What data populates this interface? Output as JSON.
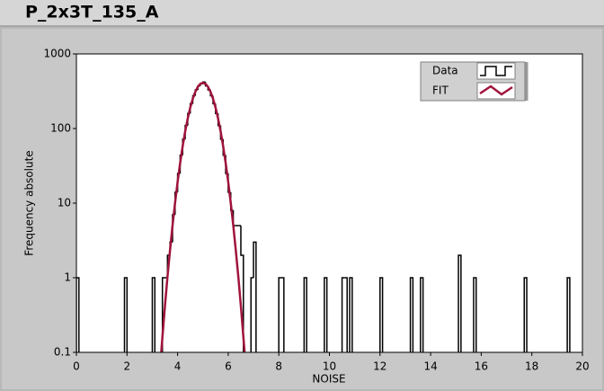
{
  "chart_data": {
    "type": "histogram",
    "title": "P_2x3T_135_A",
    "xlabel": "NOISE",
    "ylabel": "Frequency absolute",
    "xlim": [
      0,
      20
    ],
    "xticks": [
      0,
      2,
      4,
      6,
      8,
      10,
      12,
      14,
      16,
      18,
      20
    ],
    "ylim": [
      0.1,
      1000
    ],
    "yticks": [
      0.1,
      1,
      10,
      100,
      1000
    ],
    "log_y": true,
    "grid": false,
    "legend": "upper right",
    "series": [
      {
        "name": "Data",
        "type": "histogram",
        "color": "#000000",
        "bins": [
          0,
          0.1,
          0.2,
          0.3,
          0.4,
          0.5,
          0.6,
          0.7,
          0.8,
          0.9,
          1,
          1.1,
          1.2,
          1.3,
          1.4,
          1.5,
          1.6,
          1.7,
          1.8,
          1.9,
          2,
          2.1,
          2.2,
          2.3,
          2.4,
          2.5,
          2.6,
          2.7,
          2.8,
          2.9,
          3,
          3.1,
          3.2,
          3.3,
          3.4,
          3.5,
          3.6,
          3.7,
          3.8,
          3.9,
          4,
          4.1,
          4.2,
          4.3,
          4.4,
          4.5,
          4.6,
          4.7,
          4.8,
          4.9,
          5,
          5.1,
          5.2,
          5.3,
          5.4,
          5.5,
          5.6,
          5.7,
          5.8,
          5.9,
          6,
          6.1,
          6.2,
          6.3,
          6.4,
          6.5,
          6.6,
          6.7,
          6.8,
          6.9,
          7,
          7.1,
          7.2,
          7.3,
          7.4,
          7.5,
          7.6,
          7.7,
          7.8,
          7.9,
          8,
          8.1,
          8.2,
          8.3,
          8.4,
          8.5,
          8.6,
          8.7,
          8.8,
          8.9,
          9,
          9.1,
          9.2,
          9.3,
          9.4,
          9.5,
          9.6,
          9.7,
          9.8,
          9.9,
          10,
          10.1,
          10.2,
          10.3,
          10.4,
          10.5,
          10.6,
          10.7,
          10.8,
          10.9,
          11,
          11.1,
          11.2,
          11.3,
          11.4,
          11.5,
          11.6,
          11.7,
          11.8,
          11.9,
          12,
          12.1,
          12.2,
          12.3,
          12.4,
          12.5,
          12.6,
          12.7,
          12.8,
          12.9,
          13,
          13.1,
          13.2,
          13.3,
          13.4,
          13.5,
          13.6,
          13.7,
          13.8,
          13.9,
          14,
          14.1,
          14.2,
          14.3,
          14.4,
          14.5,
          14.6,
          14.7,
          14.8,
          14.9,
          15,
          15.1,
          15.2,
          15.3,
          15.4,
          15.5,
          15.6,
          15.7,
          15.8,
          15.9,
          16,
          16.1,
          16.2,
          16.3,
          16.4,
          16.5,
          16.6,
          16.7,
          16.8,
          16.9,
          17,
          17.1,
          17.2,
          17.3,
          17.4,
          17.5,
          17.6,
          17.7,
          17.8,
          17.9,
          18,
          18.1,
          18.2,
          18.3,
          18.4,
          18.5,
          18.6,
          18.7,
          18.8,
          18.9,
          19,
          19.1,
          19.2,
          19.3,
          19.4,
          19.5,
          19.6,
          19.7,
          19.8,
          19.9,
          20
        ],
        "counts": [
          1,
          0,
          0,
          0,
          0,
          0,
          0,
          0,
          0,
          0,
          0,
          0,
          0,
          0,
          0,
          0,
          0,
          0,
          0,
          1,
          0,
          0,
          0,
          0,
          0,
          0,
          0,
          0,
          0,
          0,
          1,
          0,
          0,
          0,
          1,
          1,
          2,
          3,
          7,
          14,
          25,
          44,
          72,
          110,
          159,
          215,
          275,
          330,
          373,
          397,
          420,
          373,
          330,
          275,
          215,
          159,
          110,
          72,
          44,
          25,
          14,
          8,
          5,
          5,
          5,
          2,
          0,
          0,
          0,
          1,
          3,
          0,
          0,
          0,
          0,
          0,
          0,
          0,
          0,
          0,
          1,
          1,
          0,
          0,
          0,
          0,
          0,
          0,
          0,
          0,
          1,
          0,
          0,
          0,
          0,
          0,
          0,
          0,
          1,
          0,
          0,
          0,
          0,
          0,
          0,
          1,
          1,
          0,
          1,
          0,
          0,
          0,
          0,
          0,
          0,
          0,
          0,
          0,
          0,
          0,
          1,
          0,
          0,
          0,
          0,
          0,
          0,
          0,
          0,
          0,
          0,
          0,
          1,
          0,
          0,
          0,
          1,
          0,
          0,
          0,
          0,
          0,
          0,
          0,
          0,
          0,
          0,
          0,
          0,
          0,
          0,
          2,
          0,
          0,
          0,
          0,
          0,
          1,
          0,
          0,
          0,
          0,
          0,
          0,
          0,
          0,
          0,
          0,
          0,
          0,
          0,
          0,
          0,
          0,
          0,
          0,
          0,
          1,
          0,
          0,
          0,
          0,
          0,
          0,
          0,
          0,
          0,
          0,
          0,
          0,
          0,
          0,
          0,
          0,
          1,
          0,
          0,
          0,
          0,
          0
        ]
      },
      {
        "name": "FIT",
        "type": "line",
        "color": "#a0143c",
        "x": [
          3.3,
          3.4,
          3.5,
          3.6,
          3.7,
          3.8,
          3.9,
          4,
          4.1,
          4.2,
          4.3,
          4.4,
          4.5,
          4.6,
          4.7,
          4.8,
          4.9,
          5,
          5.1,
          5.2,
          5.3,
          5.4,
          5.5,
          5.6,
          5.7,
          5.8,
          5.9,
          6,
          6.1,
          6.2,
          6.3,
          6.4,
          6.5,
          6.6,
          6.7
        ],
        "values": [
          0.059,
          0.16,
          0.42,
          1.03,
          2.33,
          5.04,
          10.1,
          19.2,
          34.4,
          57.9,
          91.7,
          136,
          191,
          251,
          311,
          363,
          398,
          410,
          398,
          363,
          311,
          251,
          191,
          136,
          91.7,
          57.9,
          34.4,
          19.2,
          10.1,
          5.04,
          2.33,
          1.03,
          0.42,
          0.16,
          0.059
        ]
      }
    ]
  }
}
